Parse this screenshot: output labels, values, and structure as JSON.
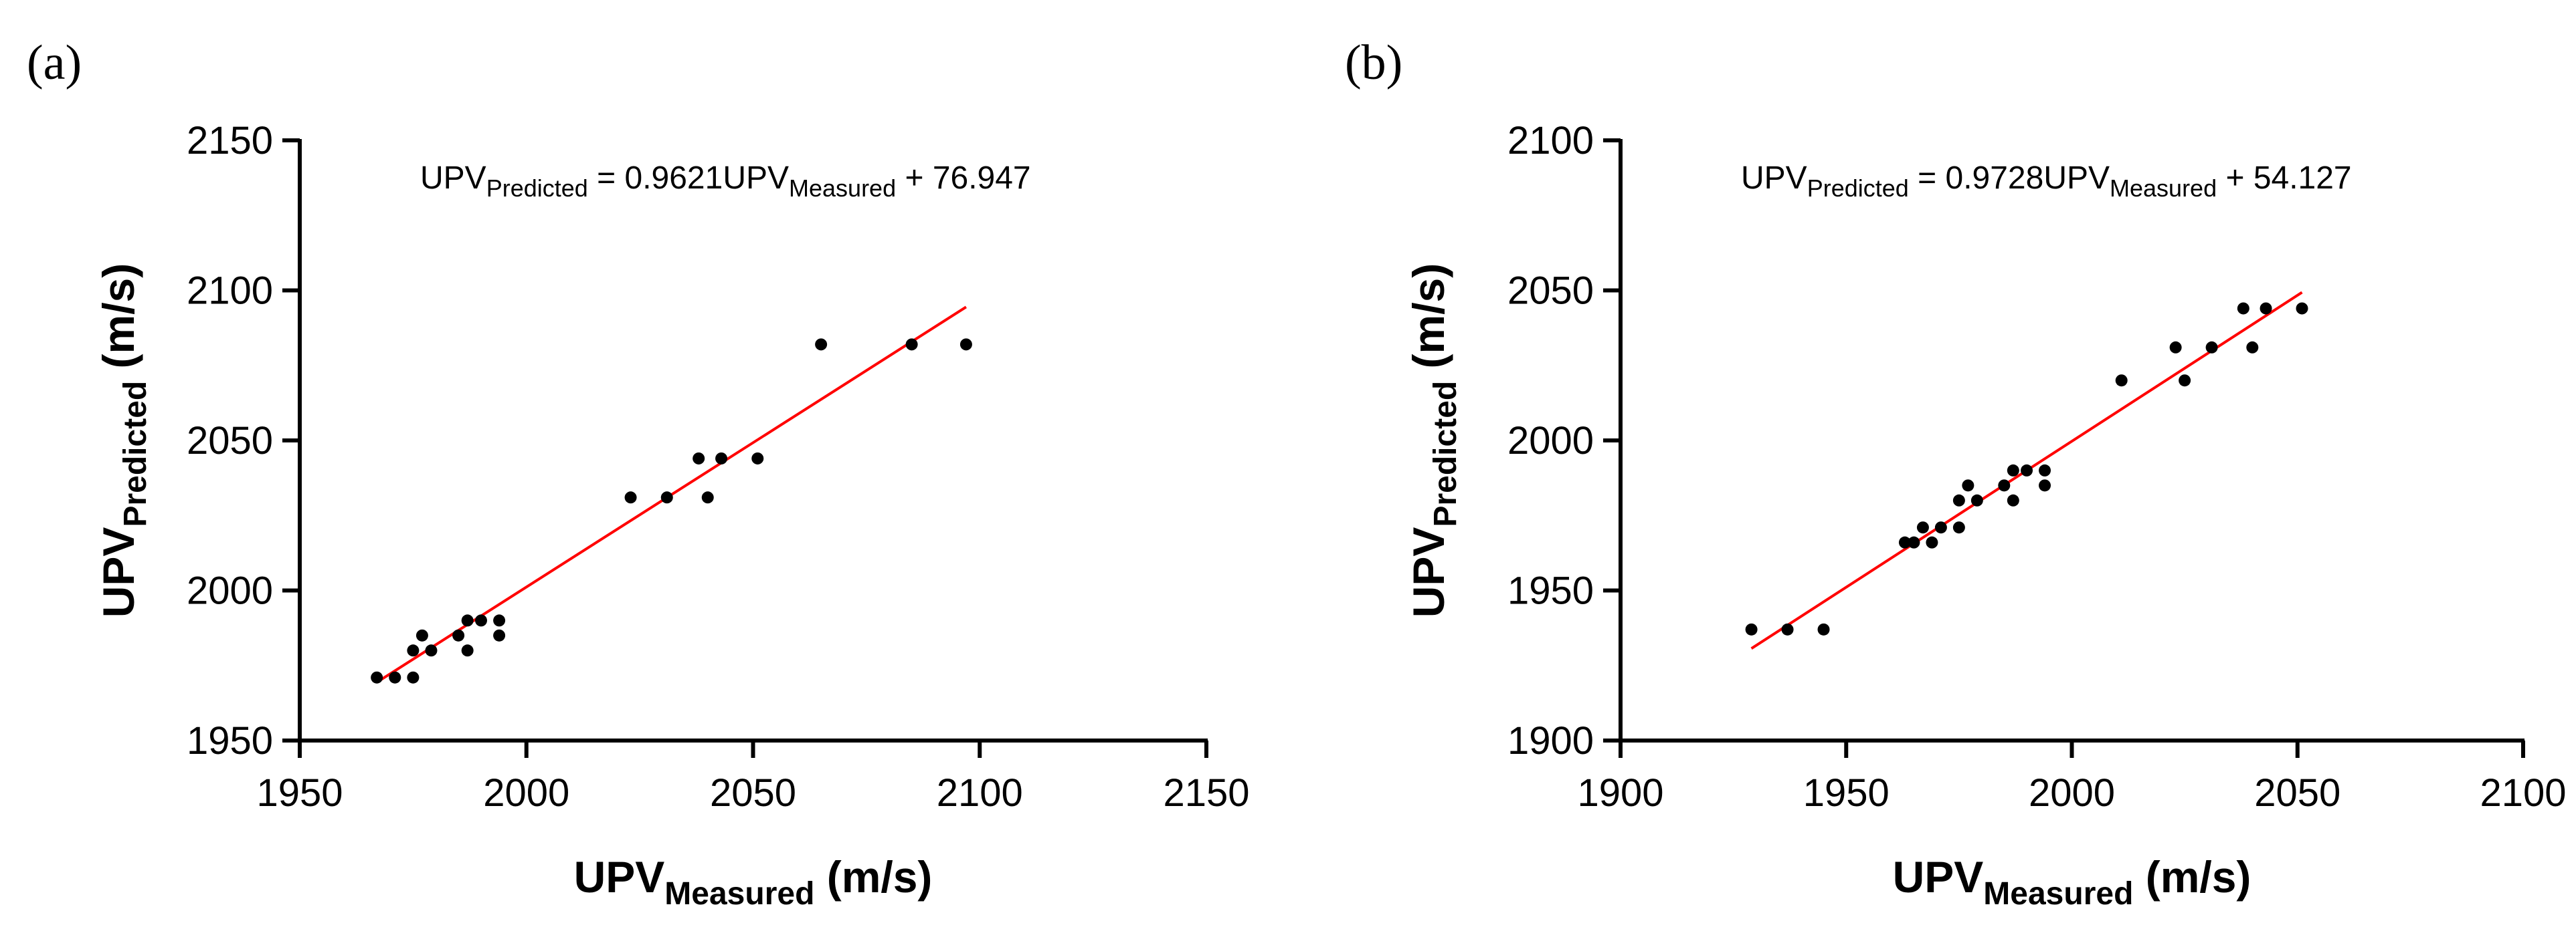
{
  "chart_data": [
    {
      "panel": "(a)",
      "type": "scatter",
      "xlabel": {
        "base": "UPV",
        "sub": "Measured",
        "unit": "(m/s)"
      },
      "ylabel": {
        "base": "UPV",
        "sub": "Predicted",
        "unit": "(m/s)"
      },
      "xlim": [
        1950,
        2150
      ],
      "ylim": [
        1950,
        2150
      ],
      "xticks": [
        "1950",
        "2000",
        "2050",
        "2100",
        "2150"
      ],
      "yticks": [
        "1950",
        "2000",
        "2050",
        "2100",
        "2150"
      ],
      "equation": {
        "lhs": "UPV",
        "lhs_sub": "Predicted",
        "mid": " = 0.9621UPV",
        "mid_sub": "Measured",
        "rhs": " + 76.947"
      },
      "fit": {
        "slope": 0.9621,
        "intercept": 76.947,
        "x_range": [
          1967,
          2097
        ],
        "color": "#ff0000"
      },
      "point_color": "#000000",
      "points": [
        [
          1967,
          1971
        ],
        [
          1971,
          1971
        ],
        [
          1975,
          1971
        ],
        [
          1975,
          1980
        ],
        [
          1977,
          1985
        ],
        [
          1979,
          1980
        ],
        [
          1985,
          1985
        ],
        [
          1987,
          1990
        ],
        [
          1987,
          1980
        ],
        [
          1990,
          1990
        ],
        [
          1994,
          1990
        ],
        [
          1994,
          1985
        ],
        [
          2023,
          2031
        ],
        [
          2031,
          2031
        ],
        [
          2038,
          2044
        ],
        [
          2040,
          2031
        ],
        [
          2043,
          2044
        ],
        [
          2051,
          2044
        ],
        [
          2065,
          2082
        ],
        [
          2085,
          2082
        ],
        [
          2097,
          2082
        ]
      ]
    },
    {
      "panel": "(b)",
      "type": "scatter",
      "xlabel": {
        "base": "UPV",
        "sub": "Measured",
        "unit": "(m/s)"
      },
      "ylabel": {
        "base": "UPV",
        "sub": "Predicted",
        "unit": "(m/s)"
      },
      "xlim": [
        1900,
        2100
      ],
      "ylim": [
        1900,
        2100
      ],
      "xticks": [
        "1900",
        "1950",
        "2000",
        "2050",
        "2100"
      ],
      "yticks": [
        "1900",
        "1950",
        "2000",
        "2050",
        "2100"
      ],
      "equation": {
        "lhs": "UPV",
        "lhs_sub": "Predicted",
        "mid": " = 0.9728UPV",
        "mid_sub": "Measured",
        "rhs": " + 54.127"
      },
      "fit": {
        "slope": 0.9728,
        "intercept": 54.127,
        "x_range": [
          1929,
          2051
        ],
        "color": "#ff0000"
      },
      "point_color": "#000000",
      "points": [
        [
          1929,
          1937
        ],
        [
          1937,
          1937
        ],
        [
          1945,
          1937
        ],
        [
          1963,
          1966
        ],
        [
          1965,
          1966
        ],
        [
          1967,
          1971
        ],
        [
          1969,
          1966
        ],
        [
          1971,
          1971
        ],
        [
          1975,
          1971
        ],
        [
          1975,
          1980
        ],
        [
          1977,
          1985
        ],
        [
          1979,
          1980
        ],
        [
          1985,
          1985
        ],
        [
          1987,
          1990
        ],
        [
          1987,
          1980
        ],
        [
          1990,
          1990
        ],
        [
          1994,
          1990
        ],
        [
          1994,
          1985
        ],
        [
          2011,
          2020
        ],
        [
          2023,
          2031
        ],
        [
          2025,
          2020
        ],
        [
          2031,
          2031
        ],
        [
          2038,
          2044
        ],
        [
          2040,
          2031
        ],
        [
          2043,
          2044
        ],
        [
          2051,
          2044
        ]
      ]
    }
  ]
}
